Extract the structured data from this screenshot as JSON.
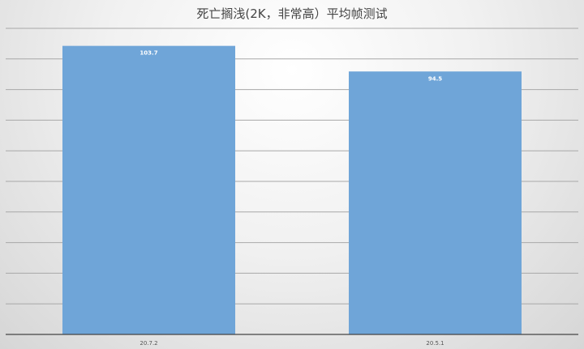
{
  "chart_data": {
    "type": "bar",
    "title": "死亡搁浅(2K，非常高）平均帧测试",
    "categories": [
      "20.7.2",
      "20.5.1"
    ],
    "values": [
      103.7,
      94.5
    ],
    "data_labels": [
      "103.7",
      "94.5"
    ],
    "ylim": [
      0,
      110
    ],
    "grid": true,
    "bar_color": "#6fa5d8",
    "xlabel": "",
    "ylabel": ""
  }
}
